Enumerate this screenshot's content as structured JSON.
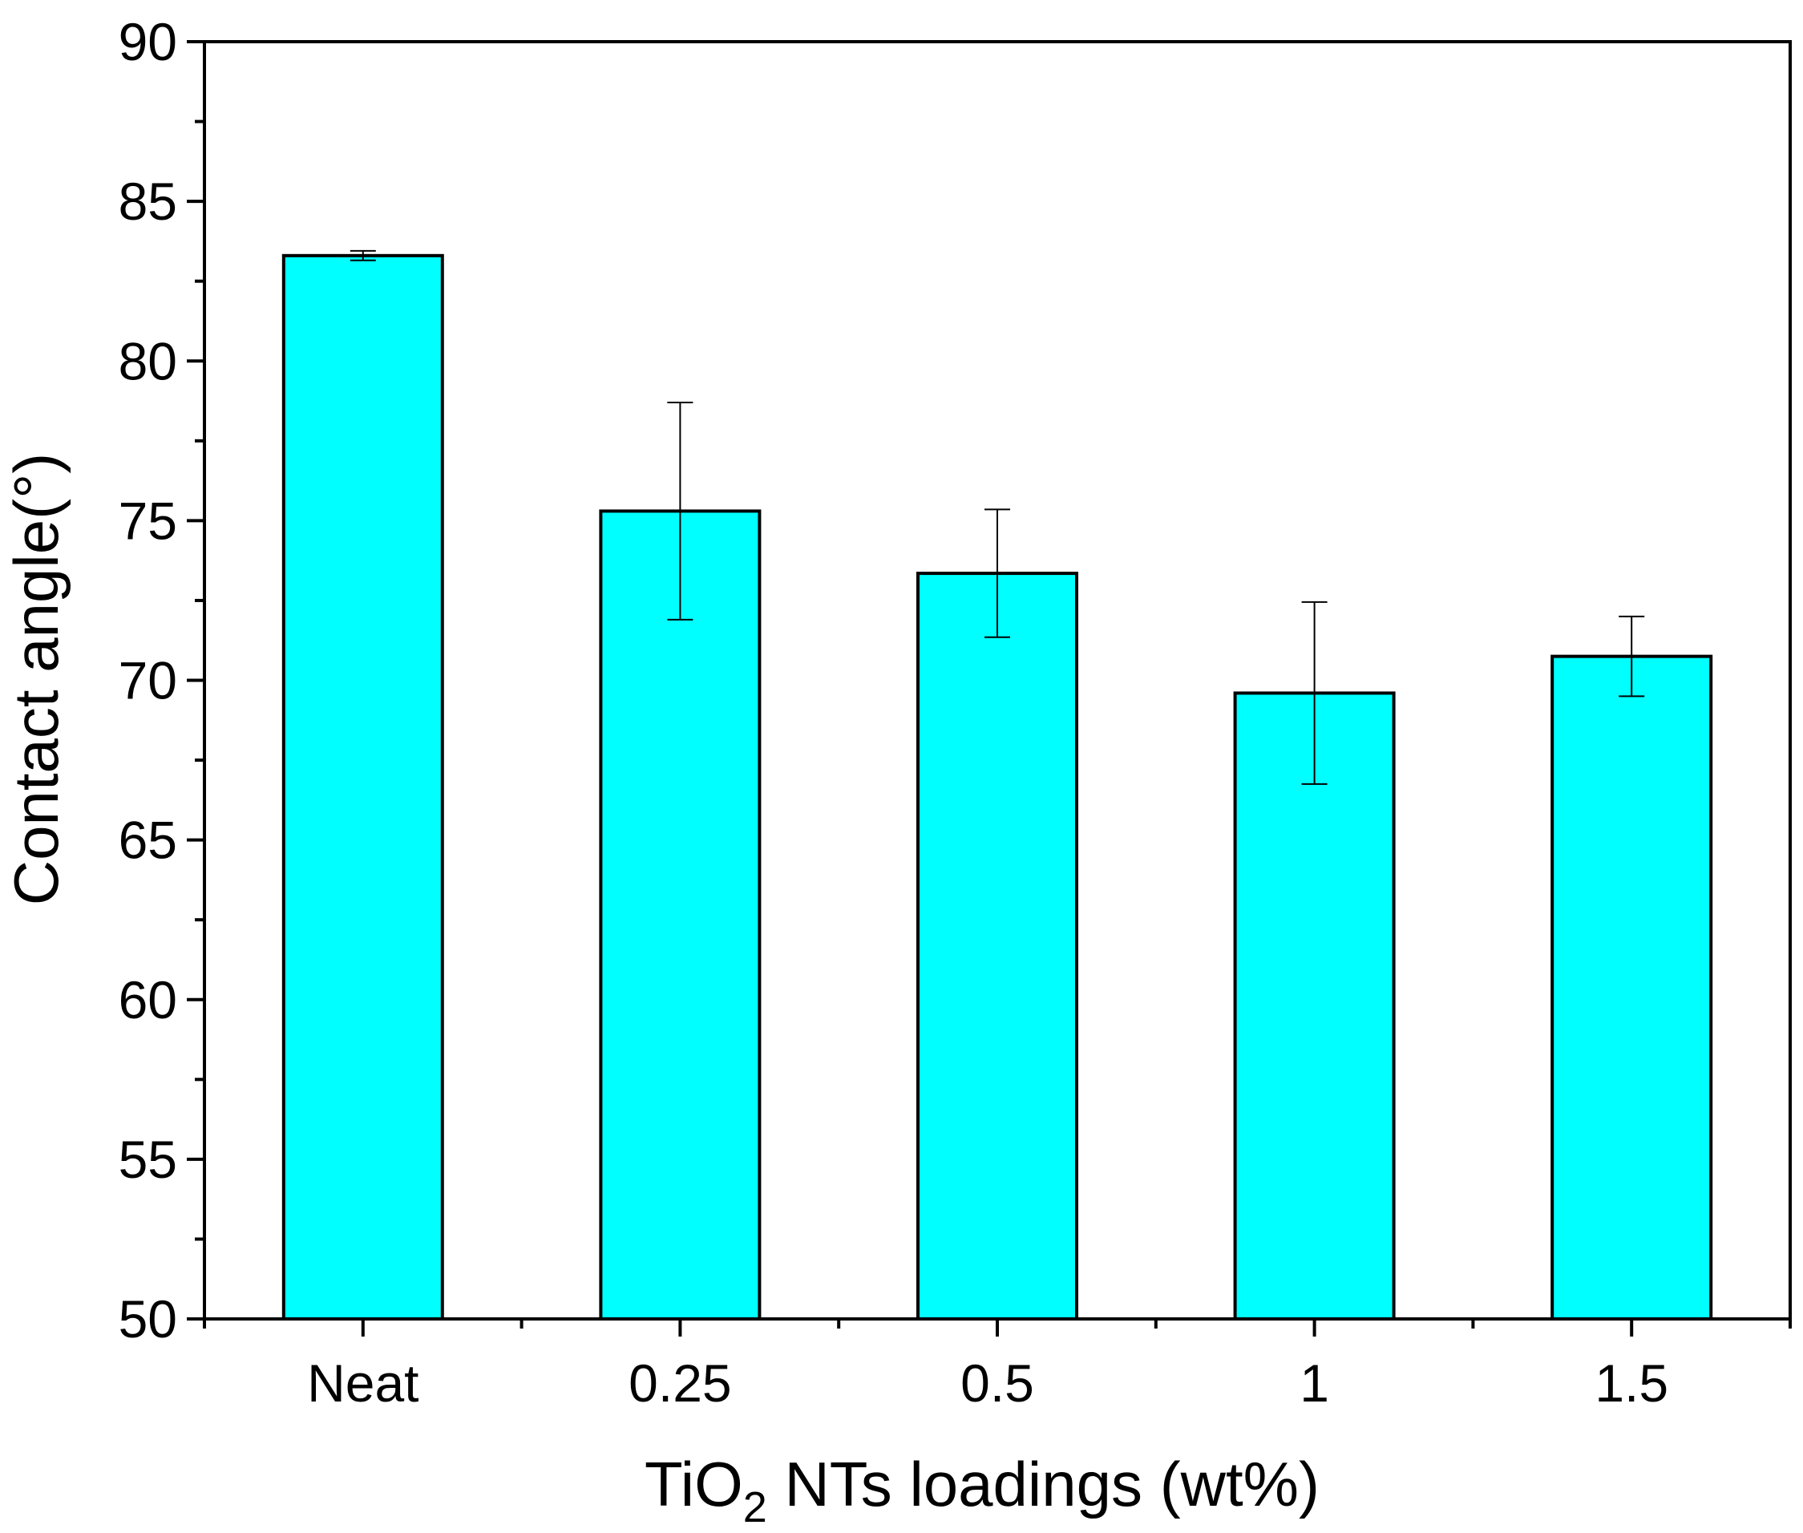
{
  "chart_data": {
    "type": "bar",
    "title": "",
    "categories": [
      "Neat",
      "0.25",
      "0.5",
      "1",
      "1.5"
    ],
    "series": [
      {
        "name": "Contact angle",
        "values": [
          83.3,
          75.3,
          73.35,
          69.6,
          70.75
        ],
        "error": [
          0.15,
          3.4,
          2.0,
          2.85,
          1.25
        ],
        "color": "#00FFFF"
      }
    ],
    "xlabel_main": "TiO",
    "xlabel_sub": "2",
    "xlabel_rest": " NTs loadings (wt%)",
    "ylabel": "Contact angle(°)",
    "ylim": [
      50,
      90
    ],
    "yticks": [
      "50",
      "55",
      "60",
      "65",
      "70",
      "75",
      "80",
      "85",
      "90"
    ],
    "grid": false,
    "legend": "none"
  }
}
